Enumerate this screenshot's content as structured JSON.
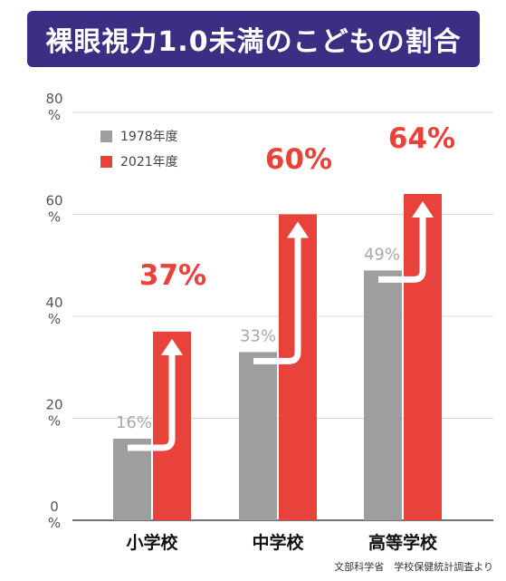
{
  "title": "裸眼視力1.0未満のこどもの割合",
  "source": "文部科学省　学校保健統計調査より",
  "colors": {
    "series_1978": "#9e9e9e",
    "series_2021": "#e8423a",
    "banner": "#3a2f82"
  },
  "chart_data": {
    "type": "bar",
    "categories": [
      "小学校",
      "中学校",
      "高等学校"
    ],
    "series": [
      {
        "name": "1978年度",
        "values": [
          16,
          33,
          49
        ],
        "labels": [
          "16%",
          "33%",
          "49%"
        ]
      },
      {
        "name": "2021年度",
        "values": [
          37,
          60,
          64
        ],
        "labels": [
          "37%",
          "60%",
          "64%"
        ]
      }
    ],
    "y_ticks": [
      0,
      20,
      40,
      60,
      80
    ],
    "y_tick_unit": "%",
    "ylim": [
      0,
      80
    ],
    "grid": true,
    "legend": "top-left"
  }
}
